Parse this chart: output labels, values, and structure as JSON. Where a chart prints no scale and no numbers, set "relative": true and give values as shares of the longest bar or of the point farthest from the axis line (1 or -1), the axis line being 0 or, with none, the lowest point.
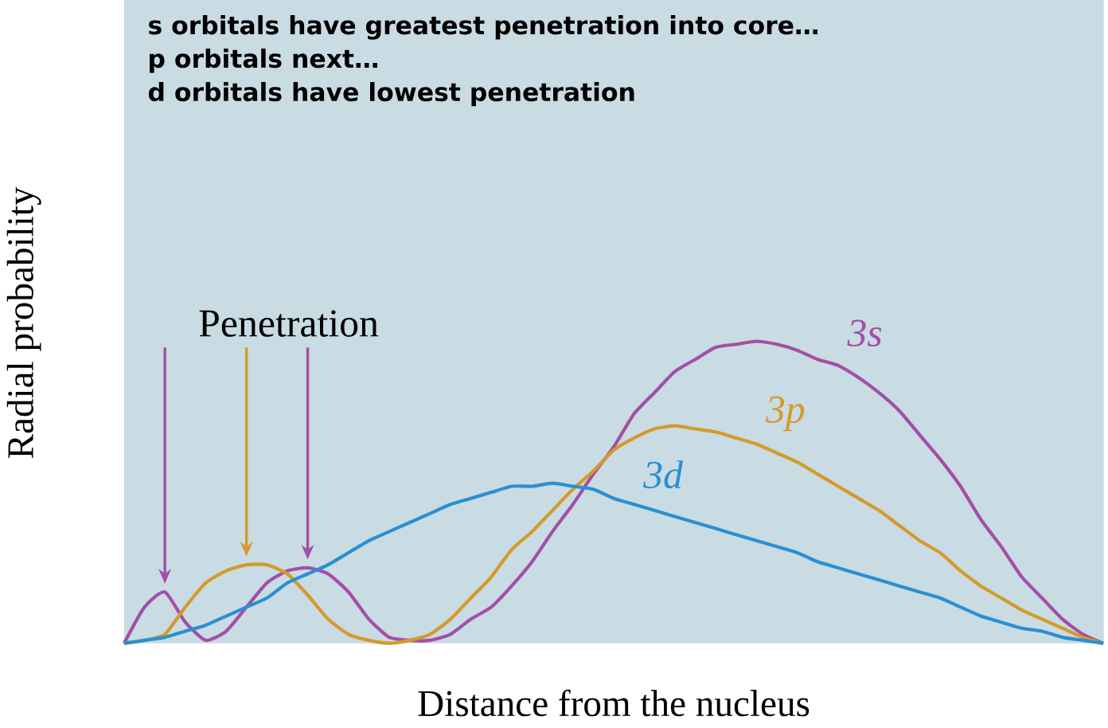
{
  "chart_data": {
    "type": "line",
    "relative": true,
    "marker": "none",
    "line_style": "solid",
    "xlabel": "Distance from the nucleus",
    "ylabel": "Radial probability",
    "annotations": [
      "s orbitals have greatest penetration into core…",
      "p orbitals next…",
      "d orbitals have lowest penetration",
      "Penetration"
    ],
    "categories": [
      null,
      null,
      null,
      null,
      null,
      null,
      null,
      null,
      null,
      null,
      null,
      null,
      null,
      null,
      null,
      null,
      null,
      null,
      null,
      null,
      null,
      null,
      null,
      null,
      null,
      null,
      null,
      null,
      null,
      null,
      null,
      null,
      null,
      null,
      null,
      null,
      null,
      null,
      null,
      null,
      null,
      null,
      null,
      null,
      null,
      null,
      null,
      null,
      null
    ],
    "series": [
      {
        "name": "3s",
        "color": "#a34fa5",
        "values": [
          0,
          0.12,
          0.17,
          0.07,
          0.01,
          0.04,
          0.12,
          0.2,
          0.24,
          0.25,
          0.23,
          0.17,
          0.08,
          0.02,
          0.01,
          0.01,
          0.03,
          0.08,
          0.12,
          0.19,
          0.27,
          0.37,
          0.46,
          0.56,
          0.65,
          0.76,
          0.83,
          0.9,
          0.94,
          0.98,
          0.99,
          1.0,
          0.99,
          0.97,
          0.94,
          0.92,
          0.88,
          0.83,
          0.77,
          0.69,
          0.61,
          0.52,
          0.41,
          0.32,
          0.22,
          0.15,
          0.08,
          0.03,
          0
        ]
      },
      {
        "name": "3p",
        "color": "#d49a2a",
        "values": [
          0,
          0.01,
          0.03,
          0.12,
          0.2,
          0.24,
          0.26,
          0.26,
          0.23,
          0.16,
          0.08,
          0.03,
          0.01,
          0,
          0.01,
          0.03,
          0.08,
          0.15,
          0.22,
          0.31,
          0.37,
          0.44,
          0.51,
          0.57,
          0.64,
          0.68,
          0.71,
          0.72,
          0.71,
          0.7,
          0.68,
          0.66,
          0.63,
          0.6,
          0.56,
          0.52,
          0.48,
          0.44,
          0.39,
          0.34,
          0.3,
          0.24,
          0.19,
          0.15,
          0.11,
          0.08,
          0.05,
          0.02,
          0
        ]
      },
      {
        "name": "3d",
        "color": "#2b8fd1",
        "values": [
          0,
          0.01,
          0.02,
          0.04,
          0.06,
          0.09,
          0.12,
          0.15,
          0.2,
          0.23,
          0.26,
          0.3,
          0.34,
          0.37,
          0.4,
          0.43,
          0.46,
          0.48,
          0.5,
          0.52,
          0.52,
          0.53,
          0.52,
          0.51,
          0.48,
          0.46,
          0.44,
          0.42,
          0.4,
          0.38,
          0.36,
          0.34,
          0.32,
          0.3,
          0.27,
          0.25,
          0.23,
          0.21,
          0.19,
          0.17,
          0.15,
          0.12,
          0.09,
          0.07,
          0.05,
          0.04,
          0.02,
          0.01,
          0
        ]
      }
    ]
  }
}
